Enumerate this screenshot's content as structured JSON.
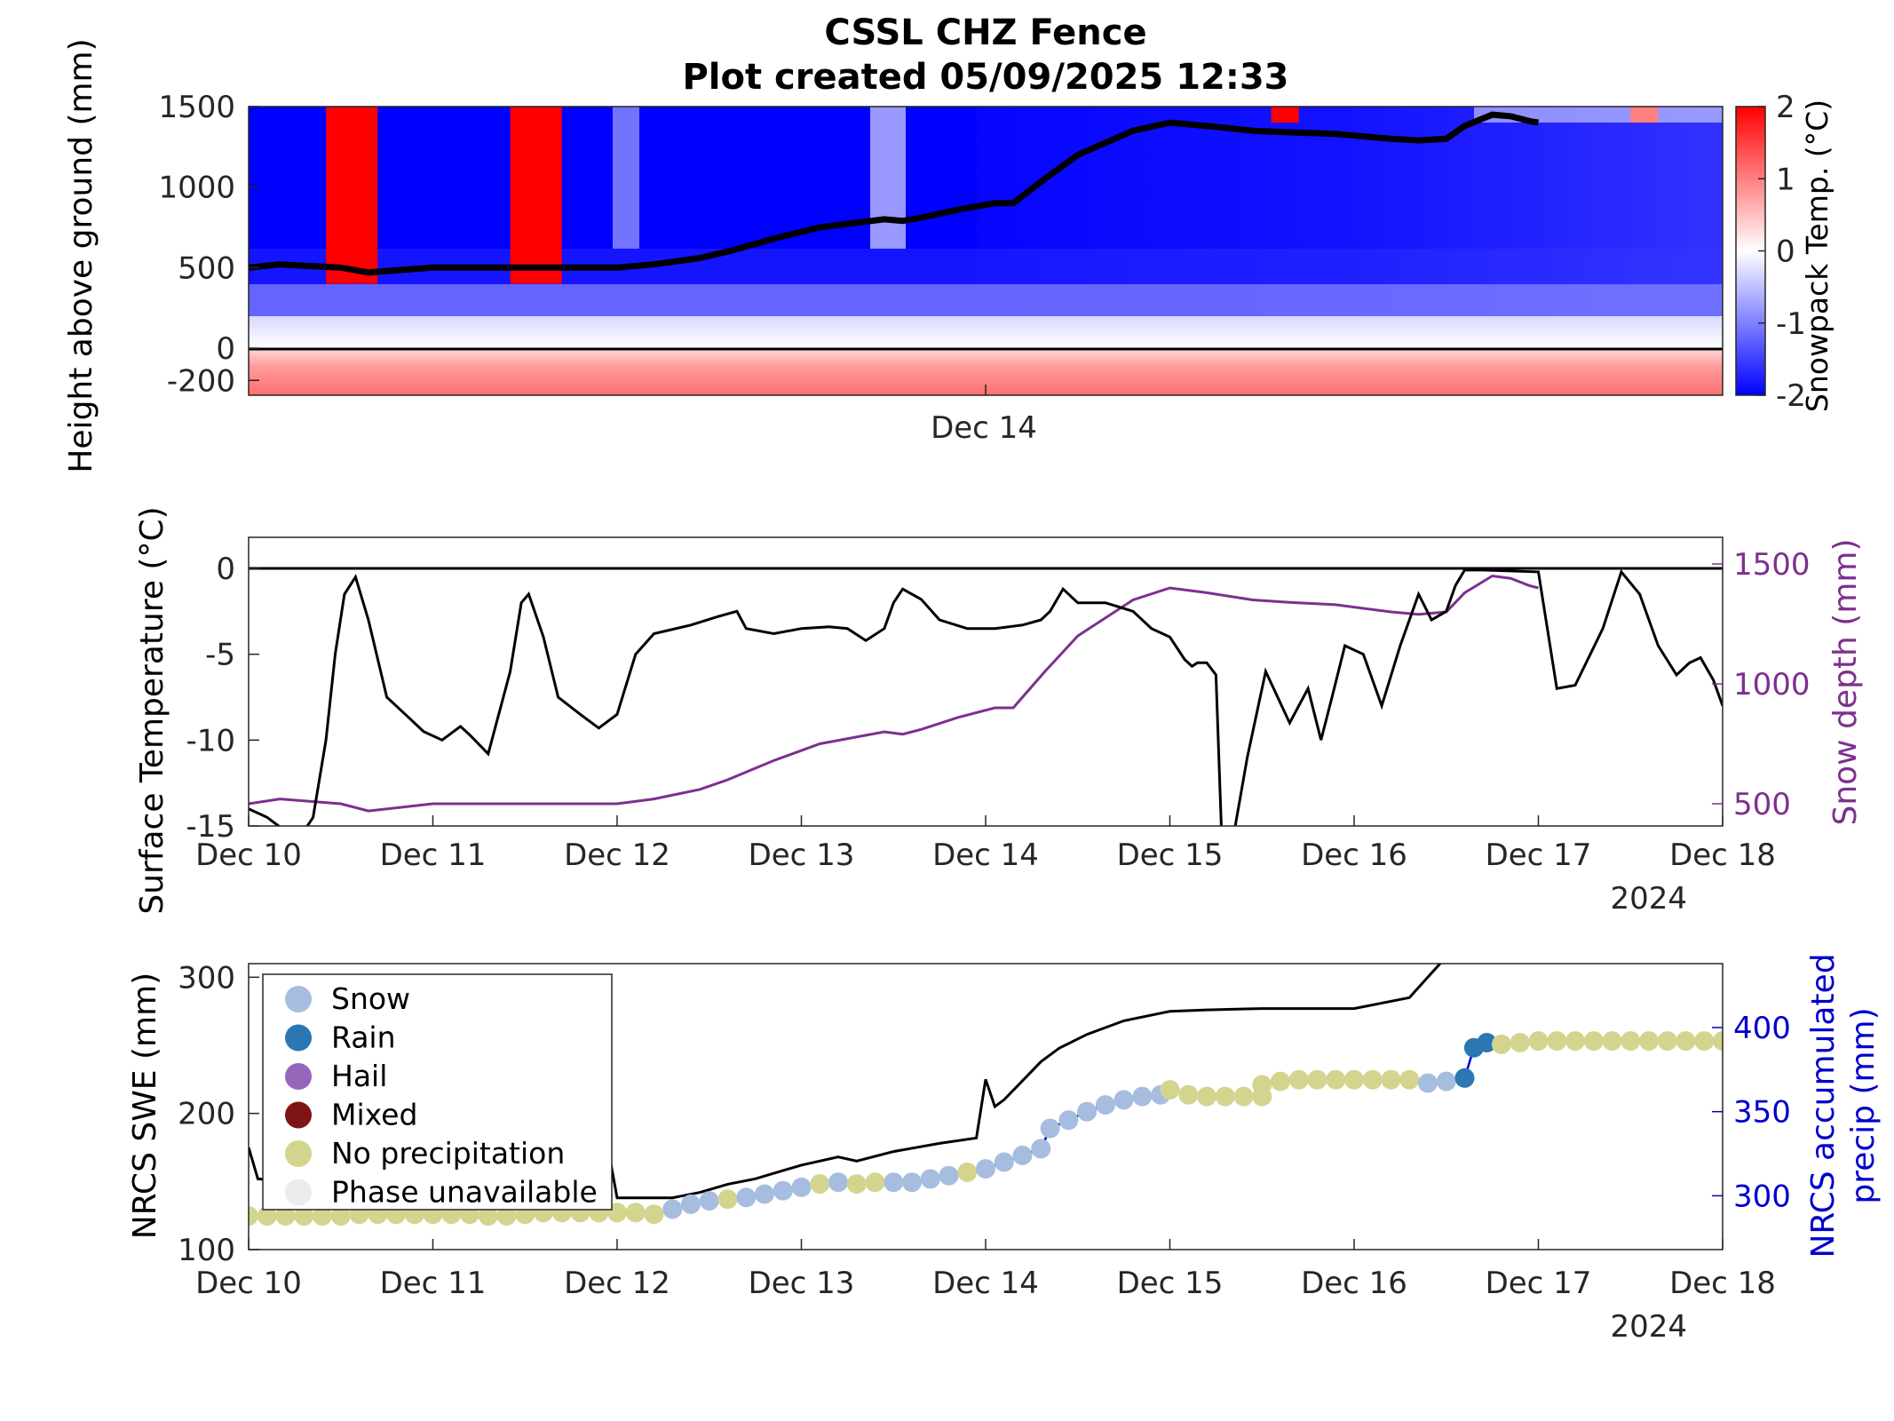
{
  "title": [
    "CSSL CHZ Fence",
    "Plot created 05/09/2025 12:33"
  ],
  "colors": {
    "snow_depth": "#7e2f8e",
    "accum_precip": "#0000cd",
    "heat_warm": "#ff0000",
    "heat_cold": "#0000ff",
    "line": "#000000"
  },
  "chart_data": [
    {
      "type": "heatmap",
      "name": "snowpack_temperature",
      "ylabel": "Height above ground (mm)",
      "colorbar_label": "Snowpack Temp. (°C)",
      "colorbar_ticks": [
        "2",
        "1",
        "0",
        "-1",
        "-2"
      ],
      "clim": [
        -2,
        2
      ],
      "ylim": [
        -150,
        1500
      ],
      "yticks": [
        "1500",
        "1000",
        "500",
        "0",
        "-200"
      ],
      "xtick_labels": [
        "Dec 14"
      ],
      "colormap": "blue-white-red",
      "warm_bands": [
        {
          "start": 0.42,
          "end": 0.7,
          "height_from": 400,
          "height_to": 1500
        },
        {
          "start": 1.42,
          "end": 1.7,
          "height_from": 400,
          "height_to": 1500
        },
        {
          "start": 5.55,
          "end": 5.7,
          "height_from": 1400,
          "height_to": 1500
        },
        {
          "start": 7.5,
          "end": 7.65,
          "height_from": 1400,
          "height_to": 1500
        }
      ],
      "snow_depth_series": {
        "x": [
          0,
          0.17,
          0.5,
          0.65,
          1.0,
          1.5,
          2.0,
          2.2,
          2.45,
          2.6,
          2.85,
          3.1,
          3.45,
          3.55,
          3.65,
          3.85,
          4.05,
          4.15,
          4.32,
          4.5,
          4.8,
          5.0,
          5.2,
          5.45,
          5.65,
          5.9,
          6.2,
          6.35,
          6.5,
          6.6,
          6.75,
          6.85,
          6.95,
          7.0
        ],
        "y": [
          500,
          520,
          500,
          470,
          500,
          500,
          500,
          520,
          560,
          600,
          680,
          750,
          800,
          790,
          810,
          860,
          900,
          900,
          1050,
          1200,
          1350,
          1400,
          1380,
          1350,
          1340,
          1330,
          1300,
          1290,
          1300,
          1380,
          1450,
          1440,
          1410,
          1400
        ]
      }
    },
    {
      "type": "line",
      "name": "surface_temperature",
      "ylabel": "Surface Temperature (°C)",
      "y2label": "Snow depth (mm)",
      "ylim": [
        -15,
        2
      ],
      "yticks": [
        0,
        -5,
        -10,
        -15
      ],
      "y2lim": [
        400,
        1600
      ],
      "y2ticks": [
        1500,
        1000,
        500
      ],
      "x_tick_labels": [
        "Dec 10",
        "Dec 11",
        "Dec 12",
        "Dec 13",
        "Dec 14",
        "Dec 15",
        "Dec 16",
        "Dec 17",
        "Dec 18"
      ],
      "year_label": "2024",
      "zero_line": true,
      "series": [
        {
          "name": "Surface Temperature",
          "color": "#000000",
          "x": [
            0,
            0.1,
            0.2,
            0.3,
            0.35,
            0.42,
            0.47,
            0.52,
            0.58,
            0.65,
            0.75,
            0.85,
            0.95,
            1.05,
            1.15,
            1.2,
            1.3,
            1.42,
            1.48,
            1.52,
            1.6,
            1.68,
            1.8,
            1.9,
            2.0,
            2.1,
            2.2,
            2.4,
            2.55,
            2.65,
            2.7,
            2.85,
            3.0,
            3.15,
            3.25,
            3.35,
            3.45,
            3.5,
            3.55,
            3.65,
            3.75,
            3.9,
            4.05,
            4.2,
            4.3,
            4.35,
            4.42,
            4.5,
            4.65,
            4.8,
            4.9,
            5.0,
            5.08,
            5.12,
            5.15,
            5.2,
            5.25,
            5.28,
            5.32,
            5.35,
            5.42,
            5.52,
            5.65,
            5.75,
            5.82,
            5.88,
            5.95,
            6.05,
            6.15,
            6.25,
            6.35,
            6.42,
            6.5,
            6.55,
            6.6,
            6.7,
            7.0,
            7.1,
            7.2,
            7.35,
            7.45,
            7.55,
            7.65,
            7.75,
            7.82,
            7.88,
            7.95,
            8.0
          ],
          "y": [
            -14,
            -14.5,
            -15.3,
            -15.3,
            -14.5,
            -10,
            -5,
            -1.5,
            -0.5,
            -3,
            -7.5,
            -8.5,
            -9.5,
            -10,
            -9.2,
            -9.7,
            -10.8,
            -6,
            -2,
            -1.5,
            -4,
            -7.5,
            -8.5,
            -9.3,
            -8.5,
            -5,
            -3.8,
            -3.3,
            -2.8,
            -2.5,
            -3.5,
            -3.8,
            -3.5,
            -3.4,
            -3.5,
            -4.2,
            -3.5,
            -2,
            -1.2,
            -1.8,
            -3,
            -3.5,
            -3.5,
            -3.3,
            -3.0,
            -2.5,
            -1.2,
            -2.0,
            -2.0,
            -2.5,
            -3.5,
            -4.0,
            -5.3,
            -5.7,
            -5.5,
            -5.5,
            -6.2,
            -15.3,
            -15.3,
            -15.3,
            -11,
            -6,
            -9,
            -7,
            -10,
            -7.5,
            -4.5,
            -5,
            -8,
            -4.5,
            -1.5,
            -3,
            -2.5,
            -1.0,
            -0.1,
            -0.1,
            -0.2,
            -7,
            -6.8,
            -3.5,
            -0.2,
            -1.5,
            -4.5,
            -6.2,
            -5.5,
            -5.2,
            -6.5,
            -8
          ]
        },
        {
          "name": "Snow depth",
          "color": "#7e2f8e",
          "axis": "right",
          "x": [
            0,
            0.17,
            0.5,
            0.65,
            1.0,
            1.5,
            2.0,
            2.2,
            2.45,
            2.6,
            2.85,
            3.1,
            3.45,
            3.55,
            3.65,
            3.85,
            4.05,
            4.15,
            4.32,
            4.5,
            4.8,
            5.0,
            5.2,
            5.45,
            5.65,
            5.9,
            6.2,
            6.35,
            6.5,
            6.6,
            6.75,
            6.85,
            6.95,
            7.0
          ],
          "y": [
            500,
            520,
            500,
            470,
            500,
            500,
            500,
            520,
            560,
            600,
            680,
            750,
            800,
            790,
            810,
            860,
            900,
            900,
            1050,
            1200,
            1350,
            1400,
            1380,
            1350,
            1340,
            1330,
            1300,
            1290,
            1300,
            1380,
            1450,
            1440,
            1410,
            1400
          ]
        }
      ]
    },
    {
      "type": "scatter",
      "name": "swe_and_precip",
      "ylabel": "NRCS SWE (mm)",
      "y2label_lines": [
        "NRCS accumulated",
        "precip (mm)"
      ],
      "ylim": [
        100,
        310
      ],
      "yticks": [
        300,
        200,
        100
      ],
      "y2lim": [
        268,
        438
      ],
      "y2ticks": [
        400,
        350,
        300
      ],
      "x_tick_labels": [
        "Dec 10",
        "Dec 11",
        "Dec 12",
        "Dec 13",
        "Dec 14",
        "Dec 15",
        "Dec 16",
        "Dec 17",
        "Dec 18"
      ],
      "year_label": "2024",
      "legend": {
        "position": "top-left",
        "entries": [
          {
            "label": "Snow",
            "color": "#a6bddf"
          },
          {
            "label": "Rain",
            "color": "#2a77b4"
          },
          {
            "label": "Hail",
            "color": "#9467bd"
          },
          {
            "label": "Mixed",
            "color": "#7f1414"
          },
          {
            "label": "No precipitation",
            "color": "#d3d58f"
          },
          {
            "label": "Phase unavailable",
            "color": "#ececee"
          }
        ]
      },
      "swe_series": {
        "name": "NRCS SWE",
        "color": "#000000",
        "x": [
          0,
          0.05,
          0.2,
          0.4,
          0.8,
          1.2,
          1.6,
          1.95,
          2.0,
          2.05,
          2.3,
          2.45,
          2.6,
          2.75,
          3.0,
          3.2,
          3.3,
          3.5,
          3.75,
          3.95,
          4.0,
          4.05,
          4.1,
          4.3,
          4.4,
          4.55,
          4.75,
          5.0,
          5.2,
          5.5,
          6.0,
          6.3,
          6.4,
          6.5,
          6.8,
          7.0
        ],
        "y": [
          175,
          152,
          150,
          148,
          148,
          150,
          152,
          175,
          138,
          138,
          138,
          142,
          148,
          152,
          162,
          168,
          165,
          172,
          178,
          182,
          225,
          205,
          210,
          238,
          248,
          258,
          268,
          275,
          276,
          277,
          277,
          285,
          300,
          315,
          315,
          315
        ]
      },
      "precip_points": [
        {
          "x": 0.0,
          "y": 288,
          "phase": "No precipitation"
        },
        {
          "x": 0.1,
          "y": 288,
          "phase": "No precipitation"
        },
        {
          "x": 0.2,
          "y": 288,
          "phase": "No precipitation"
        },
        {
          "x": 0.3,
          "y": 288,
          "phase": "No precipitation"
        },
        {
          "x": 0.4,
          "y": 288,
          "phase": "No precipitation"
        },
        {
          "x": 0.5,
          "y": 288,
          "phase": "No precipitation"
        },
        {
          "x": 0.6,
          "y": 289,
          "phase": "No precipitation"
        },
        {
          "x": 0.7,
          "y": 289,
          "phase": "No precipitation"
        },
        {
          "x": 0.8,
          "y": 289,
          "phase": "No precipitation"
        },
        {
          "x": 0.9,
          "y": 289,
          "phase": "No precipitation"
        },
        {
          "x": 1.0,
          "y": 289,
          "phase": "No precipitation"
        },
        {
          "x": 1.1,
          "y": 289,
          "phase": "No precipitation"
        },
        {
          "x": 1.2,
          "y": 289,
          "phase": "No precipitation"
        },
        {
          "x": 1.3,
          "y": 288,
          "phase": "No precipitation"
        },
        {
          "x": 1.4,
          "y": 288,
          "phase": "No precipitation"
        },
        {
          "x": 1.5,
          "y": 289,
          "phase": "No precipitation"
        },
        {
          "x": 1.6,
          "y": 290,
          "phase": "No precipitation"
        },
        {
          "x": 1.7,
          "y": 290,
          "phase": "No precipitation"
        },
        {
          "x": 1.8,
          "y": 290,
          "phase": "No precipitation"
        },
        {
          "x": 1.9,
          "y": 290,
          "phase": "No precipitation"
        },
        {
          "x": 2.0,
          "y": 290,
          "phase": "No precipitation"
        },
        {
          "x": 2.1,
          "y": 290,
          "phase": "No precipitation"
        },
        {
          "x": 2.2,
          "y": 289,
          "phase": "No precipitation"
        },
        {
          "x": 2.3,
          "y": 292,
          "phase": "Snow"
        },
        {
          "x": 2.4,
          "y": 295,
          "phase": "Snow"
        },
        {
          "x": 2.5,
          "y": 297,
          "phase": "Snow"
        },
        {
          "x": 2.6,
          "y": 298,
          "phase": "No precipitation"
        },
        {
          "x": 2.7,
          "y": 299,
          "phase": "Snow"
        },
        {
          "x": 2.8,
          "y": 301,
          "phase": "Snow"
        },
        {
          "x": 2.9,
          "y": 303,
          "phase": "Snow"
        },
        {
          "x": 3.0,
          "y": 305,
          "phase": "Snow"
        },
        {
          "x": 3.1,
          "y": 307,
          "phase": "No precipitation"
        },
        {
          "x": 3.2,
          "y": 308,
          "phase": "Snow"
        },
        {
          "x": 3.3,
          "y": 307,
          "phase": "No precipitation"
        },
        {
          "x": 3.4,
          "y": 308,
          "phase": "No precipitation"
        },
        {
          "x": 3.5,
          "y": 308,
          "phase": "Snow"
        },
        {
          "x": 3.6,
          "y": 308,
          "phase": "Snow"
        },
        {
          "x": 3.7,
          "y": 310,
          "phase": "Snow"
        },
        {
          "x": 3.8,
          "y": 312,
          "phase": "Snow"
        },
        {
          "x": 3.9,
          "y": 314,
          "phase": "No precipitation"
        },
        {
          "x": 4.0,
          "y": 316,
          "phase": "Snow"
        },
        {
          "x": 4.1,
          "y": 320,
          "phase": "Snow"
        },
        {
          "x": 4.2,
          "y": 324,
          "phase": "Snow"
        },
        {
          "x": 4.3,
          "y": 328,
          "phase": "Snow"
        },
        {
          "x": 4.35,
          "y": 340,
          "phase": "Snow"
        },
        {
          "x": 4.45,
          "y": 345,
          "phase": "Snow"
        },
        {
          "x": 4.55,
          "y": 350,
          "phase": "Snow"
        },
        {
          "x": 4.65,
          "y": 354,
          "phase": "Snow"
        },
        {
          "x": 4.75,
          "y": 357,
          "phase": "Snow"
        },
        {
          "x": 4.85,
          "y": 359,
          "phase": "Snow"
        },
        {
          "x": 4.95,
          "y": 360,
          "phase": "Snow"
        },
        {
          "x": 5.0,
          "y": 363,
          "phase": "No precipitation"
        },
        {
          "x": 5.1,
          "y": 360,
          "phase": "No precipitation"
        },
        {
          "x": 5.2,
          "y": 359,
          "phase": "No precipitation"
        },
        {
          "x": 5.3,
          "y": 359,
          "phase": "No precipitation"
        },
        {
          "x": 5.4,
          "y": 359,
          "phase": "No precipitation"
        },
        {
          "x": 5.5,
          "y": 359,
          "phase": "No precipitation"
        },
        {
          "x": 5.5,
          "y": 366,
          "phase": "No precipitation"
        },
        {
          "x": 5.6,
          "y": 368,
          "phase": "No precipitation"
        },
        {
          "x": 5.7,
          "y": 369,
          "phase": "No precipitation"
        },
        {
          "x": 5.8,
          "y": 369,
          "phase": "No precipitation"
        },
        {
          "x": 5.9,
          "y": 369,
          "phase": "No precipitation"
        },
        {
          "x": 6.0,
          "y": 369,
          "phase": "No precipitation"
        },
        {
          "x": 6.1,
          "y": 369,
          "phase": "No precipitation"
        },
        {
          "x": 6.2,
          "y": 369,
          "phase": "No precipitation"
        },
        {
          "x": 6.3,
          "y": 369,
          "phase": "No precipitation"
        },
        {
          "x": 6.4,
          "y": 367,
          "phase": "Snow"
        },
        {
          "x": 6.5,
          "y": 368,
          "phase": "Snow"
        },
        {
          "x": 6.6,
          "y": 370,
          "phase": "Rain"
        },
        {
          "x": 6.65,
          "y": 388,
          "phase": "Rain"
        },
        {
          "x": 6.72,
          "y": 391,
          "phase": "Rain"
        },
        {
          "x": 6.8,
          "y": 390,
          "phase": "No precipitation"
        },
        {
          "x": 6.9,
          "y": 391,
          "phase": "No precipitation"
        },
        {
          "x": 7.0,
          "y": 392,
          "phase": "No precipitation"
        },
        {
          "x": 7.1,
          "y": 392,
          "phase": "No precipitation"
        },
        {
          "x": 7.2,
          "y": 392,
          "phase": "No precipitation"
        },
        {
          "x": 7.3,
          "y": 392,
          "phase": "No precipitation"
        },
        {
          "x": 7.4,
          "y": 392,
          "phase": "No precipitation"
        },
        {
          "x": 7.5,
          "y": 392,
          "phase": "No precipitation"
        },
        {
          "x": 7.6,
          "y": 392,
          "phase": "No precipitation"
        },
        {
          "x": 7.7,
          "y": 392,
          "phase": "No precipitation"
        },
        {
          "x": 7.8,
          "y": 392,
          "phase": "No precipitation"
        },
        {
          "x": 7.9,
          "y": 392,
          "phase": "No precipitation"
        },
        {
          "x": 8.0,
          "y": 392,
          "phase": "No precipitation"
        }
      ]
    }
  ]
}
